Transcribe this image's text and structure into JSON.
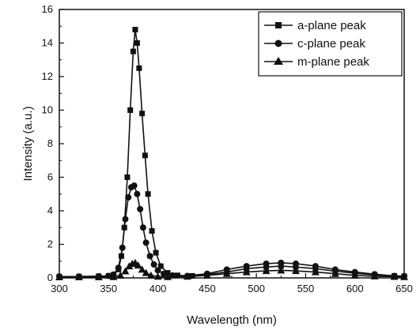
{
  "chart_data": {
    "type": "scatter",
    "xlabel": "Wavelength (nm)",
    "ylabel": "Intensity (a.u.)",
    "xlim": [
      300,
      650
    ],
    "ylim": [
      0,
      16
    ],
    "xticks": [
      "300",
      "350",
      "400",
      "450",
      "500",
      "550",
      "600",
      "650"
    ],
    "yticks": [
      "0",
      "2",
      "4",
      "6",
      "8",
      "10",
      "12",
      "14",
      "16"
    ],
    "legend_position": "top-right",
    "grid": false,
    "series": [
      {
        "name": "a-plane peak",
        "marker": "square",
        "color": "#111111",
        "x": [
          300,
          320,
          340,
          350,
          355,
          360,
          363,
          366,
          369,
          372,
          375,
          377,
          379,
          381,
          384,
          387,
          390,
          394,
          398,
          403,
          410,
          420,
          435,
          450,
          470,
          490,
          510,
          525,
          540,
          560,
          580,
          600,
          620,
          640,
          650
        ],
        "y": [
          0.08,
          0.08,
          0.1,
          0.12,
          0.18,
          0.5,
          1.3,
          3.0,
          6.0,
          10.0,
          13.5,
          14.8,
          14.0,
          12.5,
          9.8,
          7.3,
          5.0,
          2.8,
          1.5,
          0.7,
          0.3,
          0.15,
          0.12,
          0.2,
          0.35,
          0.55,
          0.65,
          0.7,
          0.65,
          0.55,
          0.4,
          0.28,
          0.18,
          0.12,
          0.1
        ]
      },
      {
        "name": "c-plane peak",
        "marker": "circle",
        "color": "#111111",
        "x": [
          300,
          320,
          340,
          350,
          355,
          360,
          364,
          367,
          370,
          373,
          376,
          379,
          382,
          385,
          388,
          392,
          396,
          400,
          406,
          415,
          430,
          450,
          470,
          490,
          510,
          525,
          540,
          560,
          580,
          600,
          620,
          640,
          650
        ],
        "y": [
          0.08,
          0.08,
          0.1,
          0.12,
          0.2,
          0.6,
          1.8,
          3.5,
          4.8,
          5.4,
          5.5,
          5.0,
          4.1,
          3.0,
          2.1,
          1.3,
          0.8,
          0.45,
          0.25,
          0.15,
          0.12,
          0.25,
          0.5,
          0.7,
          0.85,
          0.9,
          0.85,
          0.7,
          0.5,
          0.35,
          0.22,
          0.12,
          0.1
        ]
      },
      {
        "name": "m-plane peak",
        "marker": "triangle",
        "color": "#111111",
        "x": [
          300,
          320,
          340,
          355,
          362,
          367,
          371,
          374,
          377,
          380,
          384,
          388,
          393,
          400,
          410,
          430,
          450,
          470,
          490,
          510,
          525,
          540,
          560,
          580,
          600,
          620,
          640,
          650
        ],
        "y": [
          0.05,
          0.05,
          0.05,
          0.06,
          0.15,
          0.4,
          0.7,
          0.85,
          0.9,
          0.75,
          0.5,
          0.3,
          0.15,
          0.08,
          0.06,
          0.08,
          0.15,
          0.25,
          0.35,
          0.42,
          0.45,
          0.42,
          0.35,
          0.25,
          0.15,
          0.1,
          0.07,
          0.06
        ]
      }
    ]
  }
}
